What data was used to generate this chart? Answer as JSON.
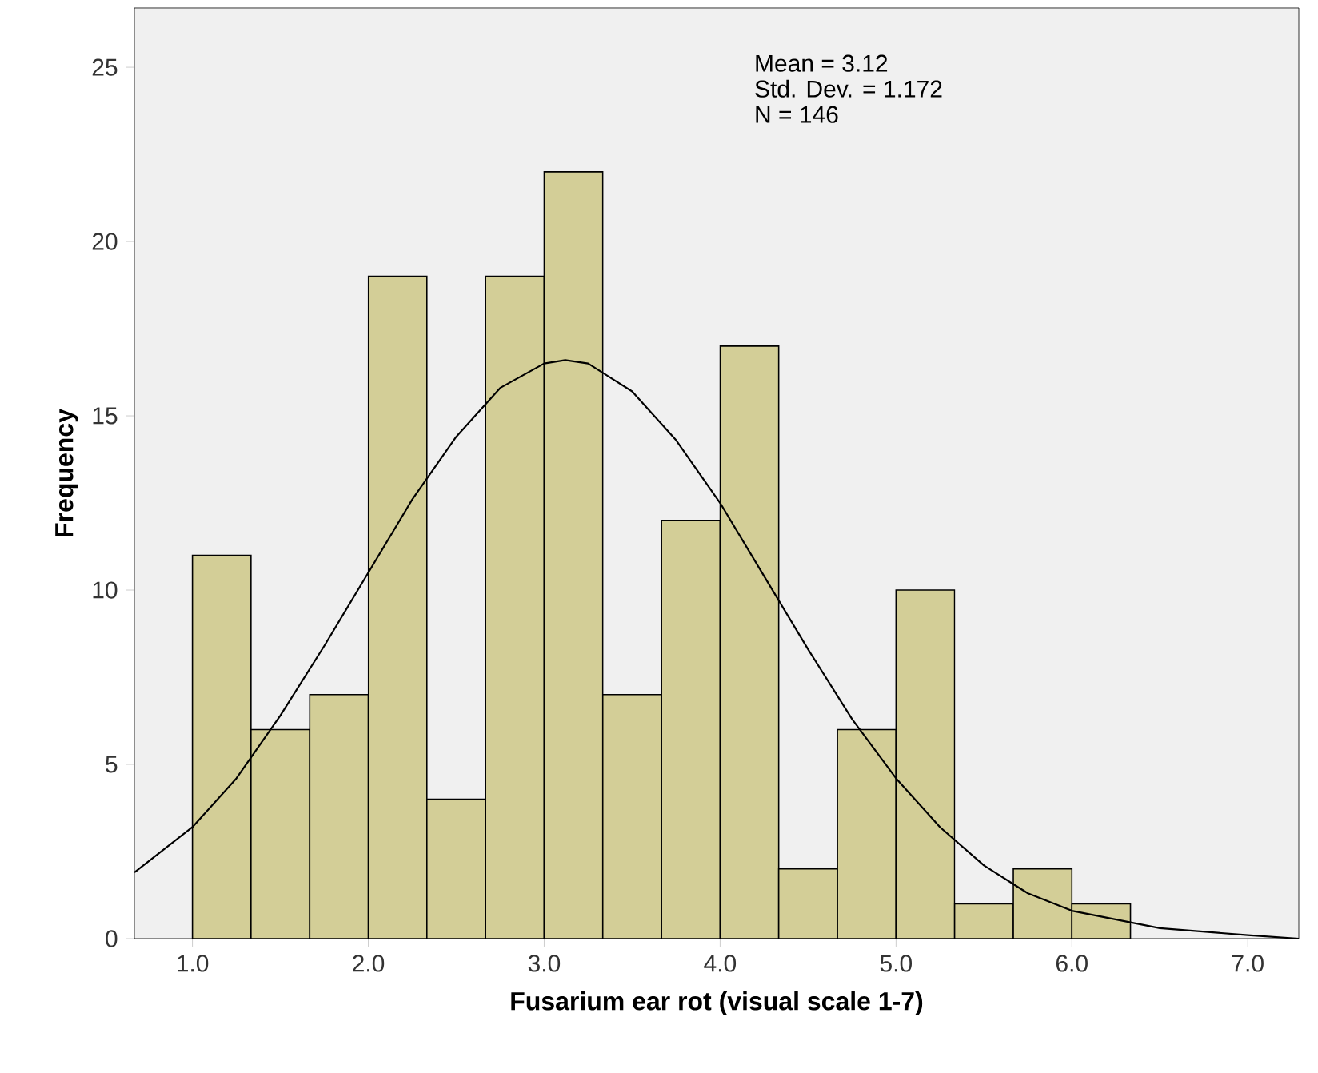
{
  "chart_data": {
    "type": "histogram",
    "xlabel": "Fusarium ear rot (visual scale 1-7)",
    "ylabel": "Frequency",
    "bins": [
      1.0,
      1.333,
      1.667,
      2.0,
      2.333,
      2.667,
      3.0,
      3.333,
      3.667,
      4.0,
      4.333,
      4.667,
      5.0,
      5.333,
      5.667,
      6.0,
      6.333
    ],
    "values": [
      11,
      6,
      7,
      19,
      4,
      19,
      22,
      7,
      12,
      17,
      2,
      6,
      10,
      1,
      2,
      1
    ],
    "color": "#d3ce97",
    "series": [
      {
        "type": "line",
        "color": "#000000",
        "x": [
          0.67,
          1.0,
          1.25,
          1.5,
          1.75,
          2.0,
          2.25,
          2.5,
          2.75,
          3.0,
          3.12,
          3.25,
          3.5,
          3.75,
          4.0,
          4.25,
          4.5,
          4.75,
          5.0,
          5.25,
          5.5,
          5.75,
          6.0,
          6.5,
          7.0,
          7.29
        ],
        "values": [
          1.9,
          3.2,
          4.6,
          6.4,
          8.4,
          10.5,
          12.6,
          14.4,
          15.8,
          16.5,
          16.6,
          16.5,
          15.7,
          14.3,
          12.5,
          10.4,
          8.3,
          6.3,
          4.6,
          3.2,
          2.1,
          1.3,
          0.8,
          0.3,
          0.1,
          0.0
        ]
      }
    ],
    "xlim": [
      0.67,
      7.29
    ],
    "ylim": [
      0,
      26.7
    ],
    "xticks": [
      {
        "value": 1,
        "label": "1.0"
      },
      {
        "value": 2,
        "label": "2.0"
      },
      {
        "value": 3,
        "label": "3.0"
      },
      {
        "value": 4,
        "label": "4.0"
      },
      {
        "value": 5,
        "label": "5.0"
      },
      {
        "value": 6,
        "label": "6.0"
      },
      {
        "value": 7,
        "label": "7.0"
      }
    ],
    "yticks": [
      0,
      5,
      10,
      15,
      20,
      25
    ],
    "annotations": [
      "Mean = 3.12",
      "Std. Dev. = 1.172",
      "N = 146"
    ]
  }
}
